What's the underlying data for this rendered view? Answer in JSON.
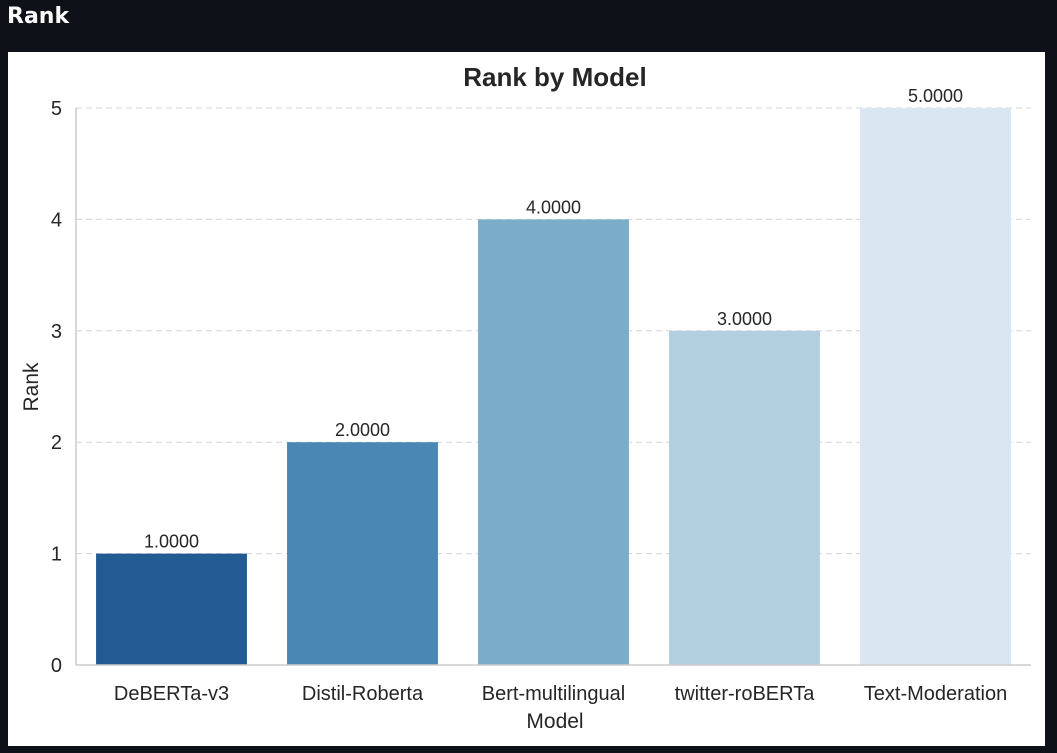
{
  "header": {
    "title": "Rank"
  },
  "chart_data": {
    "type": "bar",
    "title": "Rank by Model",
    "xlabel": "Model",
    "ylabel": "Rank",
    "categories": [
      "DeBERTa-v3",
      "Distil-Roberta",
      "Bert-multilingual",
      "twitter-roBERTa",
      "Text-Moderation"
    ],
    "values": [
      1,
      2,
      4,
      3,
      5
    ],
    "value_labels": [
      "1.0000",
      "2.0000",
      "4.0000",
      "3.0000",
      "5.0000"
    ],
    "colors": [
      "#225b93",
      "#4a87b4",
      "#7bacc9",
      "#b2cfe0",
      "#dae6f2"
    ],
    "ylim": [
      0,
      5
    ],
    "yticks": [
      "0",
      "1",
      "2",
      "3",
      "4",
      "5"
    ],
    "grid": true,
    "legend": "none"
  }
}
